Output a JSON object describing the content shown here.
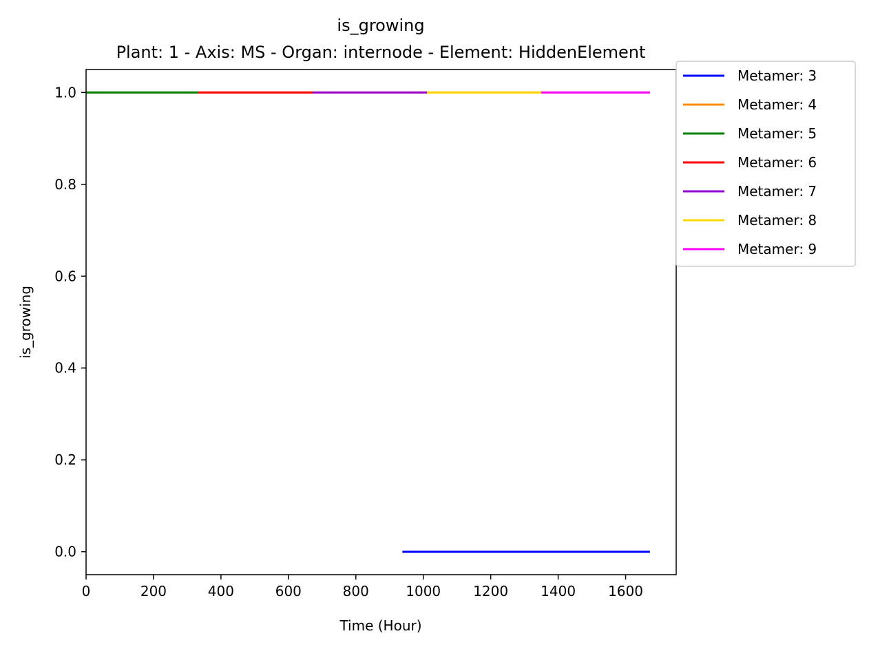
{
  "chart_data": {
    "type": "line",
    "title": "is_growing",
    "subtitle": "Plant: 1 - Axis: MS - Organ: internode - Element: HiddenElement",
    "xlabel": "Time (Hour)",
    "ylabel": "is_growing",
    "xlim": [
      0,
      1750
    ],
    "ylim": [
      -0.05,
      1.05
    ],
    "xticks": [
      0,
      200,
      400,
      600,
      800,
      1000,
      1200,
      1400,
      1600
    ],
    "yticks": [
      0.0,
      0.2,
      0.4,
      0.6,
      0.8,
      1.0
    ],
    "xtick_labels": [
      "0",
      "200",
      "400",
      "600",
      "800",
      "1000",
      "1200",
      "1400",
      "1600"
    ],
    "ytick_labels": [
      "0.0",
      "0.2",
      "0.4",
      "0.6",
      "0.8",
      "1.0"
    ],
    "grid": false,
    "legend_position": "outside-top-right",
    "series": [
      {
        "name": "Metamer: 3",
        "color": "#0000ff",
        "x": [
          938,
          1672
        ],
        "y": [
          0,
          0
        ]
      },
      {
        "name": "Metamer: 4",
        "color": "#ff8c00",
        "x": [
          0,
          1672
        ],
        "y": [
          1,
          1
        ]
      },
      {
        "name": "Metamer: 5",
        "color": "#008000",
        "x": [
          0,
          333
        ],
        "y": [
          1,
          1
        ]
      },
      {
        "name": "Metamer: 6",
        "color": "#ff0000",
        "x": [
          333,
          672
        ],
        "y": [
          1,
          1
        ]
      },
      {
        "name": "Metamer: 7",
        "color": "#9400d3",
        "x": [
          672,
          1011
        ],
        "y": [
          1,
          1
        ]
      },
      {
        "name": "Metamer: 8",
        "color": "#ffd700",
        "x": [
          1011,
          1350
        ],
        "y": [
          1,
          1
        ]
      },
      {
        "name": "Metamer: 9",
        "color": "#ff00ff",
        "x": [
          1350,
          1672
        ],
        "y": [
          1,
          1
        ]
      }
    ]
  }
}
